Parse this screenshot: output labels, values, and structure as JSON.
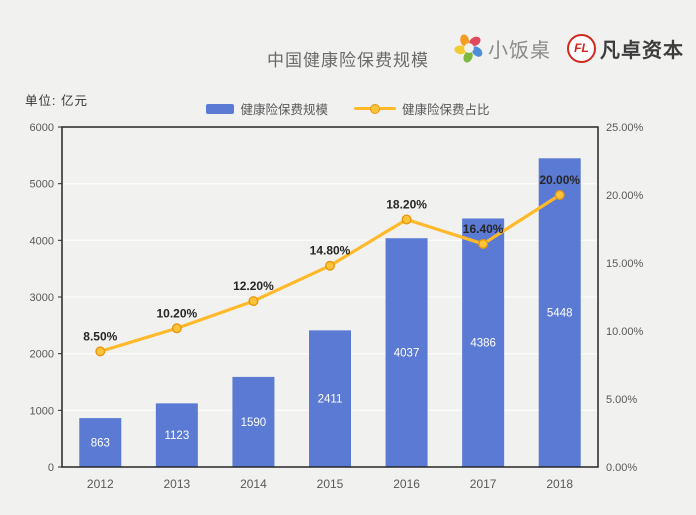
{
  "header": {
    "logos": [
      {
        "name": "xiaofanzhuo",
        "text": "小饭桌"
      },
      {
        "name": "fanzhuo-capital",
        "text": "凡卓资本",
        "monogram": "FL"
      }
    ]
  },
  "legend": [
    {
      "label": "健康险保费规模",
      "type": "bar"
    },
    {
      "label": "健康险保费占比",
      "type": "line"
    }
  ],
  "chart_data": {
    "type": "combo-bar-line",
    "title": "中国健康险保费规模",
    "unit": "单位: 亿元",
    "categories": [
      "2012",
      "2013",
      "2014",
      "2015",
      "2016",
      "2017",
      "2018"
    ],
    "series": [
      {
        "name": "健康险保费规模",
        "type": "bar",
        "axis": "left",
        "values": [
          863,
          1123,
          1590,
          2411,
          4037,
          4386,
          5448
        ],
        "value_labels": [
          "863",
          "1123",
          "1590",
          "2411",
          "4037",
          "4386",
          "5448"
        ]
      },
      {
        "name": "健康险保费占比",
        "type": "line",
        "axis": "right",
        "values": [
          8.5,
          10.2,
          12.2,
          14.8,
          18.2,
          16.4,
          20.0
        ],
        "point_labels": [
          "8.50%",
          "10.20%",
          "12.20%",
          "14.80%",
          "18.20%",
          "16.40%",
          "20.00%"
        ]
      }
    ],
    "left_axis": {
      "min": 0,
      "max": 6000,
      "step": 1000,
      "tick_labels": [
        "0",
        "1000",
        "2000",
        "3000",
        "4000",
        "5000",
        "6000"
      ]
    },
    "right_axis": {
      "min": 0,
      "max": 25,
      "step": 5,
      "tick_labels": [
        "0.00%",
        "5.00%",
        "10.00%",
        "15.00%",
        "20.00%",
        "25.00%"
      ]
    },
    "grid": true,
    "legend_position": "top-center"
  },
  "colors": {
    "background": "#F1F1F0",
    "bar": "#5A7AD4",
    "line": "#FFB92A",
    "marker_fill": "#FFC53A",
    "marker_stroke": "#E8960F",
    "axis_border": "#262626",
    "gridline": "#FBFBFB",
    "axis_text": "#595959",
    "bar_label": "#FFFFFF",
    "line_label": "#262626",
    "title_text": "#6A6A6A",
    "pinwheel": [
      "#F59B22",
      "#E2485C",
      "#4D8FD6",
      "#7CB93E",
      "#F2CB32"
    ],
    "fz_red": "#D3281E"
  }
}
